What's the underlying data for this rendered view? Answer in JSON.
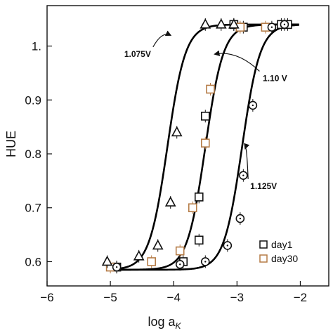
{
  "chart_data": {
    "type": "scatter",
    "title": "",
    "ylabel": "HUE",
    "xlabel_main": "log a",
    "xlabel_sub": "K",
    "xlim": [
      -6.0,
      -1.55
    ],
    "ylim": [
      0.555,
      1.075
    ],
    "xticks": [
      -6,
      -5,
      -4,
      -3,
      -2
    ],
    "xtick_labels": [
      "−6",
      "−5",
      "−4",
      "−3",
      "−2"
    ],
    "yticks": [
      0.6,
      0.7,
      0.8,
      0.9,
      1.0
    ],
    "ytick_labels": [
      "0.6",
      "0.7",
      "0.8",
      "0.9",
      "1."
    ],
    "grid": false,
    "legend_position": "bottom-right",
    "colors": {
      "axis": "#111111",
      "fit": "#000000",
      "day1": "#111111",
      "day30": "#b57c47"
    },
    "curves": [
      {
        "label": "1.075V",
        "x0": -4.1,
        "k": 7.0,
        "ymin": 0.585,
        "ymax": 1.04
      },
      {
        "label": "1.10 V",
        "x0": -3.5,
        "k": 7.0,
        "ymin": 0.585,
        "ymax": 1.04
      },
      {
        "label": "1.125V",
        "x0": -2.92,
        "k": 7.0,
        "ymin": 0.585,
        "ymax": 1.04
      }
    ],
    "series": [
      {
        "name": "day1",
        "legend": true,
        "marker": "square",
        "color": "#111111",
        "points": [
          {
            "x": -4.9,
            "y": 0.59
          },
          {
            "x": -3.85,
            "y": 0.6
          },
          {
            "x": -3.6,
            "y": 0.64
          },
          {
            "x": -3.6,
            "y": 0.72
          },
          {
            "x": -3.5,
            "y": 0.87
          },
          {
            "x": -3.05,
            "y": 1.04
          },
          {
            "x": -2.9,
            "y": 1.035
          },
          {
            "x": -2.3,
            "y": 1.04
          },
          {
            "x": -2.2,
            "y": 1.04
          }
        ]
      },
      {
        "name": "day30",
        "legend": true,
        "marker": "square",
        "color": "#b57c47",
        "points": [
          {
            "x": -5.0,
            "y": 0.59
          },
          {
            "x": -4.35,
            "y": 0.6
          },
          {
            "x": -3.9,
            "y": 0.62
          },
          {
            "x": -3.7,
            "y": 0.7
          },
          {
            "x": -3.5,
            "y": 0.82
          },
          {
            "x": -3.42,
            "y": 0.92
          },
          {
            "x": -2.95,
            "y": 1.035
          },
          {
            "x": -2.55,
            "y": 1.035
          }
        ]
      },
      {
        "name": "",
        "legend": false,
        "marker": "triangle",
        "color": "#111111",
        "points": [
          {
            "x": -5.05,
            "y": 0.6
          },
          {
            "x": -4.55,
            "y": 0.61
          },
          {
            "x": -4.25,
            "y": 0.63
          },
          {
            "x": -4.05,
            "y": 0.71
          },
          {
            "x": -3.95,
            "y": 0.84
          },
          {
            "x": -3.5,
            "y": 1.04
          },
          {
            "x": -3.25,
            "y": 1.04
          },
          {
            "x": -3.05,
            "y": 1.04
          }
        ]
      },
      {
        "name": "",
        "legend": false,
        "marker": "circle",
        "color": "#111111",
        "points": [
          {
            "x": -4.9,
            "y": 0.59
          },
          {
            "x": -3.9,
            "y": 0.595
          },
          {
            "x": -3.5,
            "y": 0.6
          },
          {
            "x": -3.15,
            "y": 0.63
          },
          {
            "x": -2.95,
            "y": 0.68
          },
          {
            "x": -2.9,
            "y": 0.76
          },
          {
            "x": -2.75,
            "y": 0.89
          },
          {
            "x": -2.45,
            "y": 1.035
          },
          {
            "x": -2.25,
            "y": 1.04
          }
        ]
      }
    ],
    "annotations": [
      {
        "text": "1.075V",
        "x": -4.57,
        "y": 0.98,
        "arrow_to_x": -4.05,
        "arrow_to_y": 1.02
      },
      {
        "text": "1.10 V",
        "x": -2.4,
        "y": 0.935,
        "arrow_to_x": -3.35,
        "arrow_to_y": 0.985
      },
      {
        "text": "1.125V",
        "x": -2.58,
        "y": 0.735,
        "arrow_to_x": -2.87,
        "arrow_to_y": 0.81
      }
    ]
  }
}
